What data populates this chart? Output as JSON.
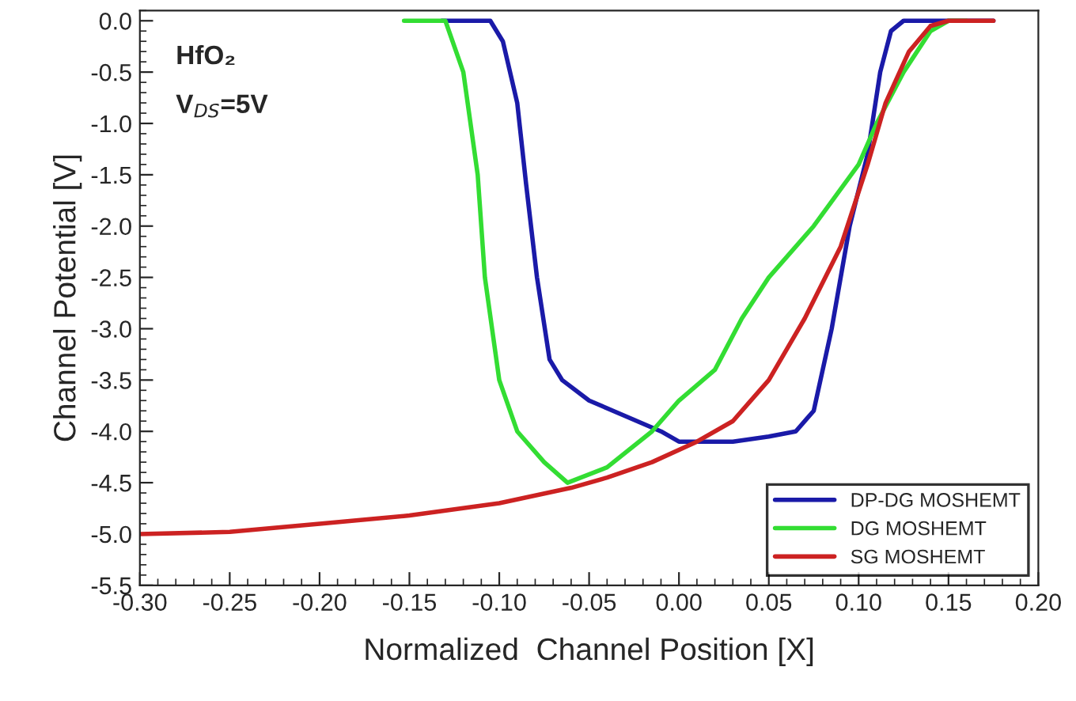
{
  "chart_data": {
    "type": "line",
    "xlabel": "Normalized  Channel Position [X]",
    "ylabel": "Channel Potential [V]",
    "annotations": [
      "HfO₂",
      "V$_{DS}$=5V"
    ],
    "xlim": [
      -0.3,
      0.2
    ],
    "ylim": [
      -5.5,
      0.1
    ],
    "xticks": [
      {
        "value": -0.3,
        "label": "-0.30"
      },
      {
        "value": -0.25,
        "label": "-0.25"
      },
      {
        "value": -0.2,
        "label": "-0.20"
      },
      {
        "value": -0.15,
        "label": "-0.15"
      },
      {
        "value": -0.1,
        "label": "-0.10"
      },
      {
        "value": -0.05,
        "label": "-0.05"
      },
      {
        "value": 0,
        "label": "0.00"
      },
      {
        "value": 0.05,
        "label": "0.05"
      },
      {
        "value": 0.1,
        "label": "0.10"
      },
      {
        "value": 0.15,
        "label": "0.15"
      },
      {
        "value": 0.2,
        "label": "0.20"
      }
    ],
    "yticks": [
      {
        "value": 0,
        "label": "0.0"
      },
      {
        "value": -0.5,
        "label": "-0.5"
      },
      {
        "value": -1,
        "label": "-1.0"
      },
      {
        "value": -1.5,
        "label": "-1.5"
      },
      {
        "value": -2,
        "label": "-2.0"
      },
      {
        "value": -2.5,
        "label": "-2.5"
      },
      {
        "value": -3,
        "label": "-3.0"
      },
      {
        "value": -3.5,
        "label": "-3.5"
      },
      {
        "value": -4,
        "label": "-4.0"
      },
      {
        "value": -4.5,
        "label": "-4.5"
      },
      {
        "value": -5,
        "label": "-5.0"
      },
      {
        "value": -5.5,
        "label": "-5.5"
      }
    ],
    "grid": false,
    "legend": "bottom right",
    "marker": "none",
    "line_style": "solid",
    "series": [
      {
        "name": "DP-DG MOSHEMT",
        "color": "#1a1aa8",
        "x": [
          -0.132,
          -0.105,
          -0.098,
          -0.09,
          -0.085,
          -0.079,
          -0.072,
          -0.065,
          -0.05,
          -0.03,
          -0.01,
          0.0,
          0.03,
          0.05,
          0.065,
          0.075,
          0.085,
          0.095,
          0.105,
          0.112,
          0.118,
          0.125,
          0.175
        ],
        "values": [
          0,
          0,
          -0.2,
          -0.8,
          -1.6,
          -2.5,
          -3.3,
          -3.5,
          -3.7,
          -3.85,
          -4.0,
          -4.1,
          -4.1,
          -4.05,
          -4.0,
          -3.8,
          -3.0,
          -2.0,
          -1.3,
          -0.5,
          -0.1,
          0,
          0
        ]
      },
      {
        "name": "DG MOSHEMT",
        "color": "#33dd33",
        "x": [
          -0.153,
          -0.13,
          -0.12,
          -0.112,
          -0.108,
          -0.1,
          -0.09,
          -0.075,
          -0.062,
          -0.04,
          -0.015,
          0.0,
          0.02,
          0.035,
          0.05,
          0.075,
          0.1,
          0.11,
          0.125,
          0.14,
          0.15,
          0.16
        ],
        "values": [
          0,
          0,
          -0.5,
          -1.5,
          -2.5,
          -3.5,
          -4.0,
          -4.3,
          -4.5,
          -4.35,
          -4.0,
          -3.7,
          -3.4,
          -2.9,
          -2.5,
          -2.0,
          -1.4,
          -1.0,
          -0.5,
          -0.1,
          0,
          0
        ]
      },
      {
        "name": "SG MOSHEMT",
        "color": "#cc2222",
        "x": [
          -0.3,
          -0.25,
          -0.2,
          -0.15,
          -0.1,
          -0.06,
          -0.04,
          -0.015,
          0.01,
          0.03,
          0.05,
          0.07,
          0.09,
          0.105,
          0.115,
          0.128,
          0.14,
          0.15,
          0.175
        ],
        "values": [
          -5.0,
          -4.98,
          -4.9,
          -4.82,
          -4.7,
          -4.55,
          -4.45,
          -4.3,
          -4.1,
          -3.9,
          -3.5,
          -2.9,
          -2.2,
          -1.4,
          -0.8,
          -0.3,
          -0.05,
          0,
          0
        ]
      }
    ]
  }
}
